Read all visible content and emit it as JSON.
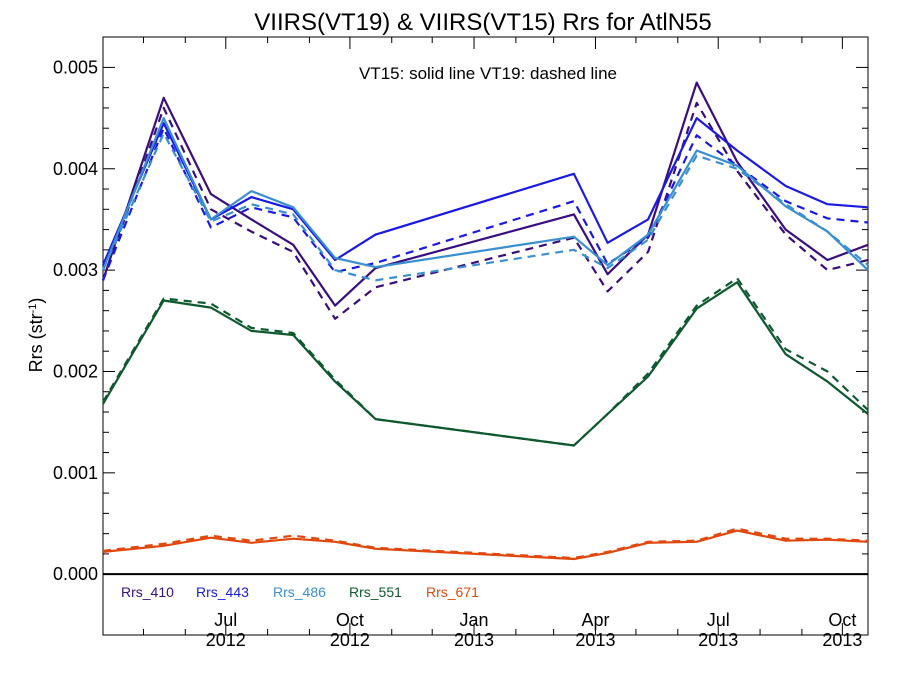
{
  "chart_data": {
    "type": "line",
    "title": "VIIRS(VT19) & VIIRS(VT15)  Rrs for AtlN55",
    "ylabel_main": "Rrs (str",
    "ylabel_sup": "-1",
    "ylabel_close": ")",
    "annotation": "VT15: solid line   VT19: dashed line",
    "ylim": [
      -0.0006,
      0.0053
    ],
    "xlim": [
      "2012-04-01",
      "2013-10-20"
    ],
    "yticks": [
      "0.000",
      "0.001",
      "0.002",
      "0.003",
      "0.004",
      "0.005"
    ],
    "ytick_values": [
      0,
      0.001,
      0.002,
      0.003,
      0.004,
      0.005
    ],
    "xticks": [
      {
        "date": "2012-07-01",
        "month": "Jul",
        "year": "2012"
      },
      {
        "date": "2012-10-01",
        "month": "Oct",
        "year": "2012"
      },
      {
        "date": "2013-01-01",
        "month": "Jan",
        "year": "2013"
      },
      {
        "date": "2013-04-01",
        "month": "Apr",
        "year": "2013"
      },
      {
        "date": "2013-07-01",
        "month": "Jul",
        "year": "2013"
      },
      {
        "date": "2013-10-01",
        "month": "Oct",
        "year": "2013"
      }
    ],
    "x": [
      "2012-04-01",
      "2012-05-16",
      "2012-06-20",
      "2012-07-20",
      "2012-08-20",
      "2012-09-20",
      "2012-10-20",
      "2013-03-16",
      "2013-04-10",
      "2013-05-10",
      "2013-06-15",
      "2013-07-15",
      "2013-08-20",
      "2013-09-20",
      "2013-10-20"
    ],
    "grid": false,
    "legend_position": "bottom-left",
    "series": [
      {
        "name": "Rrs_410",
        "color": "#3a0e7e",
        "vt15": [
          0.0029,
          0.0047,
          0.00375,
          0.0035,
          0.00325,
          0.00265,
          0.00302,
          0.00355,
          0.00296,
          0.00335,
          0.00485,
          0.00407,
          0.0034,
          0.0031,
          0.00325
        ],
        "vt19": [
          0.0029,
          0.0046,
          0.0036,
          0.00338,
          0.00318,
          0.00252,
          0.00283,
          0.00332,
          0.00279,
          0.00318,
          0.00465,
          0.00398,
          0.00335,
          0.003,
          0.0031
        ]
      },
      {
        "name": "Rrs_443",
        "color": "#1a1ae6",
        "vt15": [
          0.00305,
          0.00445,
          0.0035,
          0.00372,
          0.0036,
          0.0031,
          0.00335,
          0.00395,
          0.00327,
          0.0035,
          0.0045,
          0.00418,
          0.00383,
          0.00365,
          0.00362
        ],
        "vt19": [
          0.0029,
          0.0044,
          0.00342,
          0.00362,
          0.00352,
          0.00298,
          0.00307,
          0.00368,
          0.00306,
          0.00332,
          0.00433,
          0.00403,
          0.00368,
          0.00351,
          0.00347
        ]
      },
      {
        "name": "Rrs_486",
        "color": "#3a8fd0",
        "vt15": [
          0.003,
          0.0045,
          0.0035,
          0.00378,
          0.00362,
          0.00312,
          0.00303,
          0.00333,
          0.00305,
          0.00335,
          0.00418,
          0.00403,
          0.00363,
          0.00338,
          0.003
        ],
        "vt19": [
          0.003,
          0.00435,
          0.00348,
          0.00365,
          0.00355,
          0.003,
          0.0029,
          0.0032,
          0.00302,
          0.0033,
          0.00413,
          0.004,
          0.00365,
          0.00338,
          0.00305
        ]
      },
      {
        "name": "Rrs_551",
        "color": "#0e5a2e",
        "vt15": [
          0.00168,
          0.0027,
          0.00263,
          0.0024,
          0.00236,
          0.0019,
          0.00153,
          0.00127,
          0.00158,
          0.00195,
          0.00262,
          0.00288,
          0.00217,
          0.0019,
          0.00158
        ],
        "vt19": [
          0.0017,
          0.00272,
          0.00267,
          0.00243,
          0.00238,
          0.00192,
          0.00153,
          0.00127,
          0.00158,
          0.00198,
          0.00265,
          0.00292,
          0.00222,
          0.002,
          0.00162
        ]
      },
      {
        "name": "Rrs_671",
        "color": "#e0480e",
        "vt15": [
          0.00022,
          0.00028,
          0.00036,
          0.00031,
          0.00035,
          0.00032,
          0.00025,
          0.00015,
          0.00021,
          0.00031,
          0.00032,
          0.00043,
          0.00033,
          0.00034,
          0.00032
        ],
        "vt19": [
          0.00023,
          0.0003,
          0.00038,
          0.00033,
          0.00038,
          0.00033,
          0.00026,
          0.00016,
          0.00022,
          0.00032,
          0.00033,
          0.00045,
          0.00035,
          0.00035,
          0.00033
        ]
      }
    ]
  }
}
